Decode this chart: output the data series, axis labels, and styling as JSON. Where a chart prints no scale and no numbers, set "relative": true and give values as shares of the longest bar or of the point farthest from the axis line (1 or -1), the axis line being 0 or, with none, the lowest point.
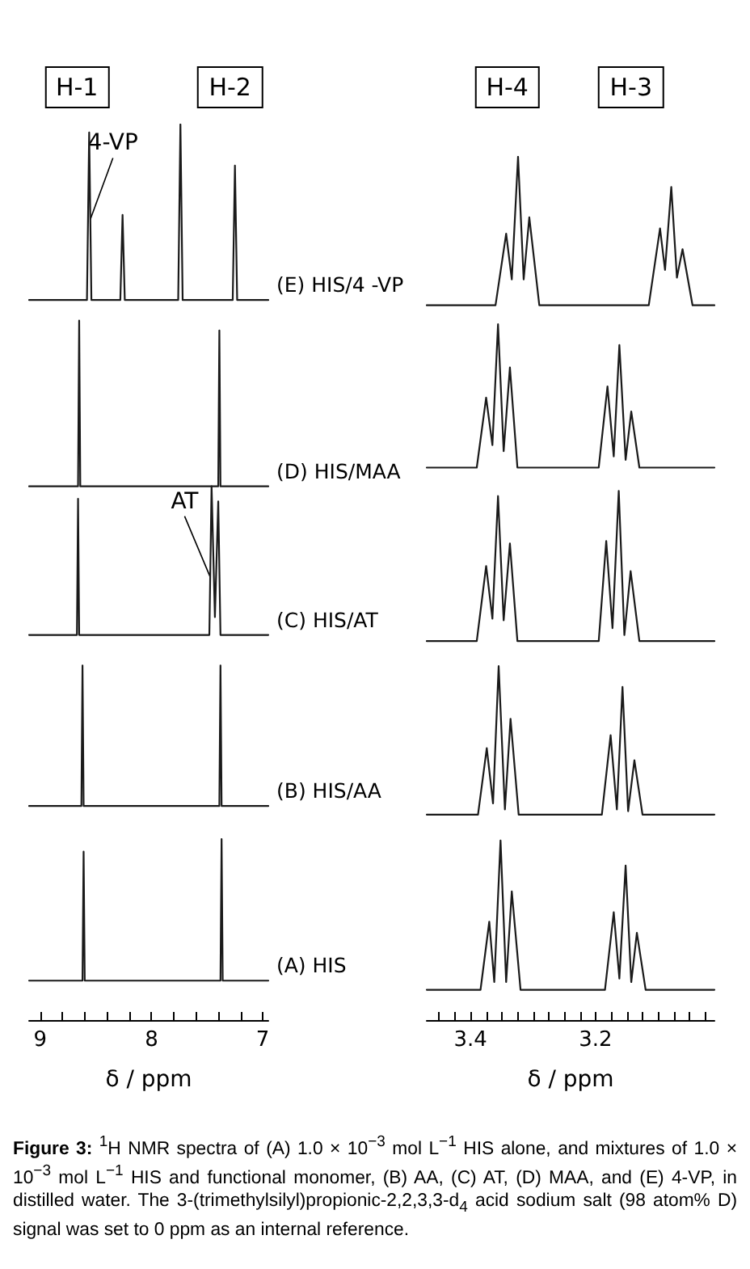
{
  "chart_data": [
    {
      "type": "line",
      "relative": true,
      "xlabel": "δ / ppm",
      "xlim": [
        9.1,
        6.95
      ],
      "xticks": [
        {
          "value": 8.8,
          "label": null
        },
        {
          "value": 8.6,
          "label": null
        },
        {
          "value": 8.4,
          "label": null
        },
        {
          "value": 8.2,
          "label": null
        },
        {
          "value": 7.8,
          "label": null
        },
        {
          "value": 7.6,
          "label": null
        },
        {
          "value": 7.4,
          "label": null
        },
        {
          "value": 7.2,
          "label": null
        },
        9,
        8,
        7
      ],
      "tick_labels": "x",
      "annotations": [
        "H-1",
        "H-2",
        {
          "text": "4-VP",
          "x": 8.55,
          "y": 0.894
        },
        {
          "text": "AT",
          "x": 7.47,
          "y": 0.494
        }
      ],
      "series": [
        {
          "name": "(E) HIS/4 -VP",
          "color": "#1a1a1a",
          "x": [
            9.1,
            8.58,
            8.56,
            8.54,
            8.28,
            8.26,
            8.24,
            7.76,
            7.74,
            7.72,
            7.27,
            7.25,
            7.23,
            6.95
          ],
          "values": [
            0.804,
            0.804,
            0.991,
            0.804,
            0.804,
            0.899,
            0.804,
            0.804,
            1.0,
            0.804,
            0.804,
            0.954,
            0.804,
            0.804
          ]
        },
        {
          "name": "(D) HIS/MAA",
          "color": "#1a1a1a",
          "x": [
            9.1,
            8.66,
            8.65,
            8.64,
            7.4,
            7.39,
            7.38,
            6.95
          ],
          "values": [
            0.596,
            0.596,
            0.781,
            0.596,
            0.596,
            0.77,
            0.596,
            0.596
          ]
        },
        {
          "name": "(C) HIS/AT",
          "color": "#1a1a1a",
          "x": [
            9.1,
            8.67,
            8.66,
            8.65,
            7.48,
            7.46,
            7.43,
            7.4,
            7.38,
            6.95
          ],
          "values": [
            0.43,
            0.43,
            0.582,
            0.43,
            0.43,
            0.596,
            0.45,
            0.579,
            0.43,
            0.43
          ]
        },
        {
          "name": "(B) HIS/AA",
          "color": "#1a1a1a",
          "x": [
            9.1,
            8.63,
            8.62,
            8.61,
            7.39,
            7.38,
            7.37,
            6.95
          ],
          "values": [
            0.239,
            0.239,
            0.396,
            0.239,
            0.239,
            0.396,
            0.239,
            0.239
          ]
        },
        {
          "name": "(A) HIS",
          "color": "#1a1a1a",
          "x": [
            9.1,
            8.62,
            8.61,
            8.6,
            7.38,
            7.37,
            7.36,
            6.95
          ],
          "values": [
            0.044,
            0.044,
            0.188,
            0.044,
            0.044,
            0.202,
            0.044,
            0.044
          ]
        }
      ]
    },
    {
      "type": "line",
      "relative": true,
      "xlabel": "δ / ppm",
      "xlim": [
        3.47,
        3.01
      ],
      "xticks": [
        {
          "value": 3.45,
          "label": null
        },
        {
          "value": 3.425,
          "label": null
        },
        {
          "value": 3.375,
          "label": null
        },
        {
          "value": 3.35,
          "label": null
        },
        {
          "value": 3.325,
          "label": null
        },
        {
          "value": 3.3,
          "label": null
        },
        {
          "value": 3.275,
          "label": null
        },
        {
          "value": 3.25,
          "label": null
        },
        {
          "value": 3.225,
          "label": null
        },
        {
          "value": 3.175,
          "label": null
        },
        {
          "value": 3.15,
          "label": null
        },
        {
          "value": 3.125,
          "label": null
        },
        {
          "value": 3.1,
          "label": null
        },
        {
          "value": 3.075,
          "label": null
        },
        {
          "value": 3.05,
          "label": null
        },
        {
          "value": 3.025,
          "label": null
        },
        3.4,
        3.2
      ],
      "tick_labels": "x",
      "annotations": [
        "H-4",
        "H-3",
        "Figure 3: $^{1}$H NMR spectra of (A) 1.0 × 10$^{−3}$ mol L$^{−1}$ HIS alone, and mixtures of 1.0 × 10$^{−3}$ mol L$^{−1}$ HIS and functional monomer, (B) AA, (C) AT, (D) MAA, and (E) 4-VP, in distilled water. The 3-(trimethylsilyl)propionic-2,2,3,3-d$_{4}$ acid sodium salt (98 atom% D) signal was set to 0 ppm as an internal reference."
      ],
      "series": [
        {
          "color": "#1a1a1a",
          "x": [
            3.47,
            3.36,
            3.343,
            3.334,
            3.324,
            3.315,
            3.306,
            3.29,
            3.115,
            3.097,
            3.089,
            3.079,
            3.07,
            3.061,
            3.045,
            3.01
          ],
          "values": [
            0.828,
            0.828,
            0.911,
            0.858,
            1.0,
            0.858,
            0.93,
            0.828,
            0.828,
            0.917,
            0.869,
            0.965,
            0.86,
            0.893,
            0.828,
            0.828
          ]
        },
        {
          "color": "#1a1a1a",
          "x": [
            3.47,
            3.39,
            3.375,
            3.365,
            3.356,
            3.347,
            3.337,
            3.325,
            3.195,
            3.181,
            3.171,
            3.162,
            3.152,
            3.143,
            3.13,
            3.01
          ],
          "values": [
            0.64,
            0.64,
            0.721,
            0.666,
            0.806,
            0.659,
            0.756,
            0.64,
            0.64,
            0.734,
            0.653,
            0.782,
            0.649,
            0.705,
            0.64,
            0.64
          ]
        },
        {
          "color": "#1a1a1a",
          "x": [
            3.47,
            3.39,
            3.375,
            3.365,
            3.356,
            3.347,
            3.337,
            3.325,
            3.195,
            3.183,
            3.173,
            3.163,
            3.154,
            3.144,
            3.13,
            3.01
          ],
          "values": [
            0.439,
            0.439,
            0.526,
            0.465,
            0.607,
            0.463,
            0.552,
            0.439,
            0.439,
            0.555,
            0.454,
            0.613,
            0.446,
            0.52,
            0.439,
            0.439
          ]
        },
        {
          "color": "#1a1a1a",
          "x": [
            3.47,
            3.388,
            3.374,
            3.364,
            3.355,
            3.345,
            3.336,
            3.323,
            3.19,
            3.176,
            3.166,
            3.157,
            3.148,
            3.138,
            3.125,
            3.01
          ],
          "values": [
            0.238,
            0.238,
            0.315,
            0.251,
            0.41,
            0.244,
            0.349,
            0.238,
            0.238,
            0.33,
            0.244,
            0.386,
            0.242,
            0.301,
            0.238,
            0.238
          ]
        },
        {
          "color": "#1a1a1a",
          "x": [
            3.47,
            3.384,
            3.37,
            3.362,
            3.352,
            3.343,
            3.334,
            3.32,
            3.185,
            3.171,
            3.162,
            3.152,
            3.143,
            3.134,
            3.12,
            3.01
          ],
          "values": [
            0.035,
            0.035,
            0.114,
            0.044,
            0.208,
            0.044,
            0.149,
            0.035,
            0.035,
            0.125,
            0.048,
            0.179,
            0.044,
            0.101,
            0.035,
            0.035
          ]
        }
      ]
    }
  ]
}
